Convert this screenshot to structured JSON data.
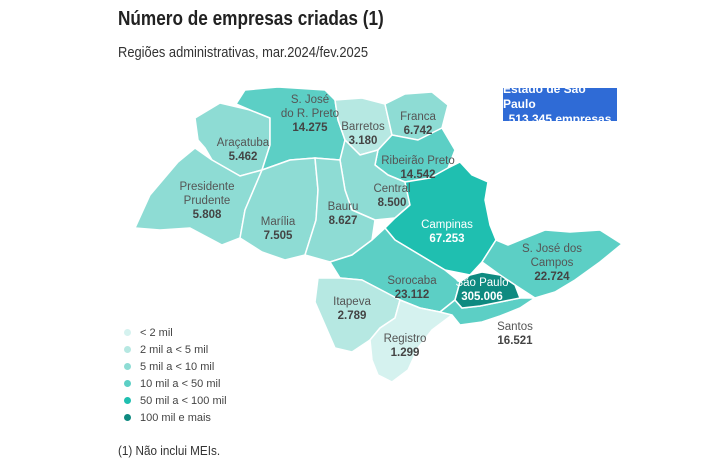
{
  "title": "Número de empresas criadas (1)",
  "subtitle": "Regiões administrativas, mar.2024/fev.2025",
  "state": {
    "name": "Estado de São Paulo",
    "total": "513.345 empresas"
  },
  "regions": {
    "sjrp": {
      "name1": "S. José",
      "name2": "do R. Preto",
      "value": "14.275",
      "class": "10 mil a < 50 mil"
    },
    "barretos": {
      "name1": "Barretos",
      "value": "3.180",
      "class": "2 mil a < 5 mil"
    },
    "franca": {
      "name1": "Franca",
      "value": "6.742",
      "class": "5 mil a < 10 mil"
    },
    "aracatuba": {
      "name1": "Araçatuba",
      "value": "5.462",
      "class": "5 mil a < 10 mil"
    },
    "ribeirao": {
      "name1": "Ribeirão Preto",
      "value": "14.542",
      "class": "10 mil a < 50 mil"
    },
    "central": {
      "name1": "Central",
      "value": "8.500",
      "class": "5 mil a < 10 mil"
    },
    "pp": {
      "name1": "Presidente",
      "name2": "Prudente",
      "value": "5.808",
      "class": "5 mil a < 10 mil"
    },
    "marilia": {
      "name1": "Marília",
      "value": "7.505",
      "class": "5 mil a < 10 mil"
    },
    "bauru": {
      "name1": "Bauru",
      "value": "8.627",
      "class": "5 mil a < 10 mil"
    },
    "campinas": {
      "name1": "Campinas",
      "value": "67.253",
      "class": "50 mil a < 100 mil"
    },
    "sjc": {
      "name1": "S. José dos",
      "name2": "Campos",
      "value": "22.724",
      "class": "10 mil a < 50 mil"
    },
    "sorocaba": {
      "name1": "Sorocaba",
      "value": "23.112",
      "class": "10 mil a < 50 mil"
    },
    "saopaulo": {
      "name1": "São Paulo",
      "value": "305.006",
      "class": "100 mil e mais"
    },
    "itapeva": {
      "name1": "Itapeva",
      "value": "2.789",
      "class": "2 mil a < 5 mil"
    },
    "santos": {
      "name1": "Santos",
      "value": "16.521",
      "class": "10 mil a < 50 mil"
    },
    "registro": {
      "name1": "Registro",
      "value": "1.299",
      "class": "< 2 mil"
    }
  },
  "legend": [
    {
      "label": "< 2 mil",
      "color": "#d5f2ef"
    },
    {
      "label": "2 mil a < 5 mil",
      "color": "#b6e8e2"
    },
    {
      "label": "5 mil a < 10 mil",
      "color": "#8edcd4"
    },
    {
      "label": "10 mil a < 50 mil",
      "color": "#5ccfc5"
    },
    {
      "label": "50 mil a < 100 mil",
      "color": "#1fbfb0"
    },
    {
      "label": "100 mil e mais",
      "color": "#0e8a80"
    }
  ],
  "colors": {
    "accent_box": "#2f6bd6",
    "border": "#ffffff"
  },
  "footnote": "(1) Não inclui MEIs."
}
